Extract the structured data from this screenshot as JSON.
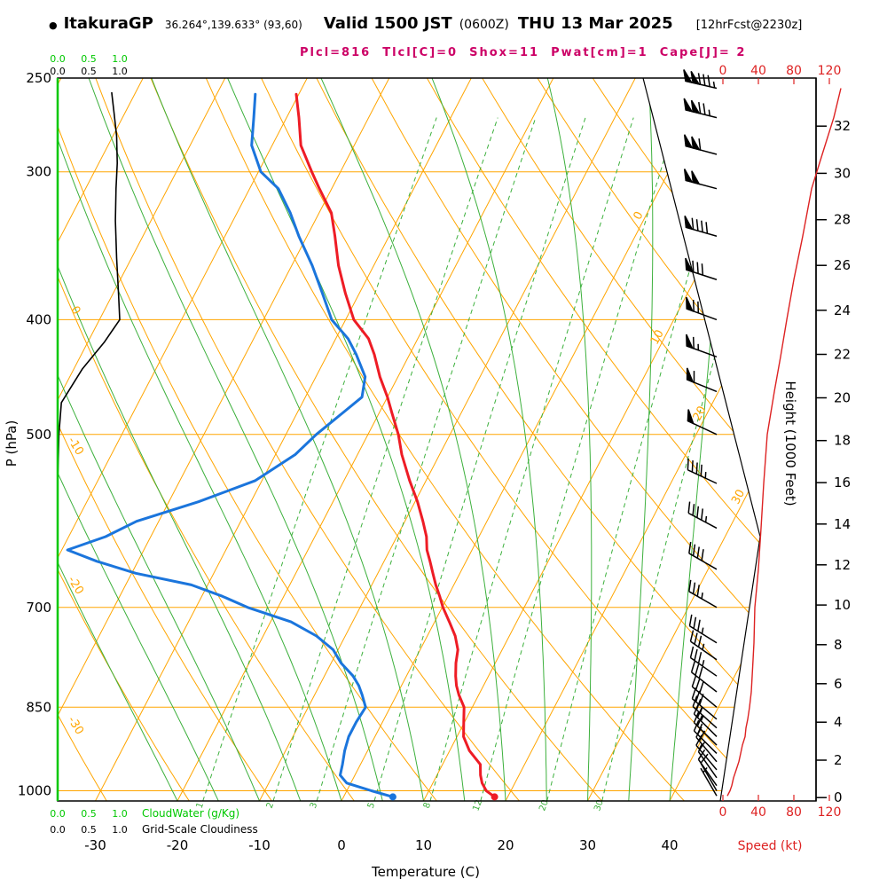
{
  "header": {
    "bullet": "●",
    "station": "ItakuraGP",
    "coords": "36.264°,139.633° (93,60)",
    "valid_main": "Valid 1500 JST",
    "valid_z": "(0600Z)",
    "valid_date": "THU 13 Mar 2025",
    "fcst": "[12hrFcst@2230z]",
    "params": "Plcl=816  Tlcl[C]=0  Shox=11  Pwat[cm]=1  Cape[J]= 2"
  },
  "style": {
    "grid_orange": "#FFA500",
    "grid_green": "#3CB03C",
    "axis_green": "#00C800",
    "temp_red": "#EE1C25",
    "dew_blue": "#1B75DC",
    "speed_red": "#DD2222",
    "params_magenta": "#CC0066",
    "black": "#000000"
  },
  "chart_data": {
    "type": "skewt-log-p-sounding",
    "pressure_axis": {
      "label": "P (hPa)",
      "ticks": [
        250,
        300,
        400,
        500,
        700,
        850,
        1000
      ],
      "gridlines": [
        300,
        400,
        500,
        700,
        850,
        1000
      ],
      "range": [
        250,
        1020
      ]
    },
    "temperature_axis": {
      "label": "Temperature (C)",
      "ticks": [
        -30,
        -20,
        -10,
        0,
        10,
        20,
        30,
        40
      ]
    },
    "height_axis": {
      "label": "Height (1000 Feet)",
      "ticks": [
        0,
        2,
        4,
        6,
        8,
        10,
        12,
        14,
        16,
        18,
        20,
        22,
        24,
        26,
        28,
        30,
        32
      ]
    },
    "speed_axis": {
      "label": "Speed (kt)",
      "ticks": [
        0,
        40,
        80,
        120
      ]
    },
    "cloudwater_axis": {
      "label": "CloudWater (g/Kg)",
      "ticks": [
        "0.0",
        "0.5",
        "1.0"
      ]
    },
    "cloudiness_axis": {
      "label": "Grid-Scale Cloudiness",
      "ticks": [
        "0.0",
        "0.5",
        "1.0"
      ]
    },
    "skew_grid": {
      "isotherms": {
        "min": -120,
        "max": 40,
        "step": 10
      },
      "isotherm_labels": [
        [
          0,
          245
        ],
        [
          10,
          382
        ],
        [
          20,
          468
        ],
        [
          30,
          562
        ]
      ],
      "dry_adiabats": {
        "min": -40,
        "max": 150,
        "step": 10
      },
      "dry_adiabat_labels": [
        [
          0,
          352
        ],
        [
          -10,
          505
        ],
        [
          -20,
          662
        ],
        [
          -30,
          820
        ]
      ],
      "moist_adiabats": {
        "min": -20,
        "max": 40,
        "step": 5
      },
      "mixing_ratios": [
        1,
        2,
        3,
        5,
        8,
        12,
        20,
        30
      ]
    },
    "sounding_levels_p_t_td": [
      [
        1012,
        18.4,
        6.0
      ],
      [
        1000,
        17.0,
        3.0
      ],
      [
        985,
        16.0,
        -0.5
      ],
      [
        970,
        15.3,
        -1.8
      ],
      [
        950,
        14.6,
        -2.2
      ],
      [
        925,
        12.4,
        -2.8
      ],
      [
        900,
        10.8,
        -3.2
      ],
      [
        875,
        9.9,
        -3.2
      ],
      [
        850,
        9.0,
        -3.0
      ],
      [
        830,
        7.6,
        -4.2
      ],
      [
        815,
        6.7,
        -5.2
      ],
      [
        800,
        6.0,
        -6.5
      ],
      [
        780,
        5.2,
        -8.8
      ],
      [
        760,
        4.6,
        -10.6
      ],
      [
        740,
        3.4,
        -13.5
      ],
      [
        720,
        1.8,
        -17.5
      ],
      [
        700,
        0.1,
        -23.7
      ],
      [
        685,
        -1.0,
        -27.5
      ],
      [
        670,
        -2.2,
        -32.0
      ],
      [
        655,
        -3.3,
        -39.5
      ],
      [
        640,
        -4.4,
        -45.0
      ],
      [
        626,
        -5.5,
        -49.3
      ],
      [
        610,
        -6.4,
        -45.5
      ],
      [
        592,
        -7.8,
        -42.7
      ],
      [
        570,
        -9.7,
        -36.4
      ],
      [
        547,
        -12.0,
        -30.8
      ],
      [
        520,
        -14.6,
        -27.6
      ],
      [
        500,
        -16.3,
        -26.3
      ],
      [
        480,
        -18.4,
        -24.5
      ],
      [
        465,
        -20.0,
        -23.1
      ],
      [
        447,
        -22.2,
        -24.0
      ],
      [
        428,
        -24.3,
        -26.5
      ],
      [
        415,
        -26.0,
        -28.5
      ],
      [
        400,
        -29.0,
        -31.7
      ],
      [
        380,
        -31.7,
        -34.5
      ],
      [
        360,
        -34.3,
        -37.5
      ],
      [
        340,
        -36.6,
        -41.0
      ],
      [
        325,
        -38.5,
        -43.5
      ],
      [
        310,
        -41.5,
        -46.5
      ],
      [
        300,
        -43.5,
        -49.7
      ],
      [
        285,
        -46.5,
        -52.5
      ],
      [
        270,
        -48.5,
        -54.0
      ],
      [
        258,
        -50.3,
        -55.3
      ]
    ],
    "wind_levels_p_kt_dir": [
      [
        1010,
        5,
        330
      ],
      [
        1000,
        8,
        330
      ],
      [
        990,
        10,
        325
      ],
      [
        975,
        12,
        325
      ],
      [
        960,
        15,
        320
      ],
      [
        945,
        18,
        320
      ],
      [
        930,
        20,
        315
      ],
      [
        915,
        22,
        315
      ],
      [
        900,
        25,
        315
      ],
      [
        885,
        26,
        312
      ],
      [
        870,
        28,
        310
      ],
      [
        850,
        30,
        310
      ],
      [
        825,
        32,
        308
      ],
      [
        800,
        33,
        305
      ],
      [
        775,
        34,
        305
      ],
      [
        750,
        35,
        302
      ],
      [
        700,
        36,
        300
      ],
      [
        650,
        40,
        300
      ],
      [
        600,
        43,
        298
      ],
      [
        550,
        46,
        295
      ],
      [
        500,
        50,
        295
      ],
      [
        460,
        58,
        292
      ],
      [
        430,
        65,
        290
      ],
      [
        400,
        72,
        290
      ],
      [
        370,
        80,
        288
      ],
      [
        340,
        90,
        286
      ],
      [
        310,
        100,
        285
      ],
      [
        290,
        112,
        285
      ],
      [
        270,
        125,
        284
      ],
      [
        255,
        133,
        283
      ]
    ],
    "cloudiness_profile_p_frac": [
      [
        1020,
        0
      ],
      [
        700,
        0
      ],
      [
        550,
        0
      ],
      [
        500,
        0.02
      ],
      [
        470,
        0.06
      ],
      [
        440,
        0.4
      ],
      [
        418,
        0.75
      ],
      [
        400,
        1.0
      ],
      [
        380,
        0.98
      ],
      [
        355,
        0.95
      ],
      [
        330,
        0.93
      ],
      [
        310,
        0.94
      ],
      [
        295,
        0.96
      ],
      [
        280,
        0.95
      ],
      [
        268,
        0.91
      ],
      [
        257,
        0.87
      ]
    ],
    "cloudwater_profile_p_gkg": [
      [
        1020,
        0
      ],
      [
        250,
        0
      ]
    ]
  }
}
